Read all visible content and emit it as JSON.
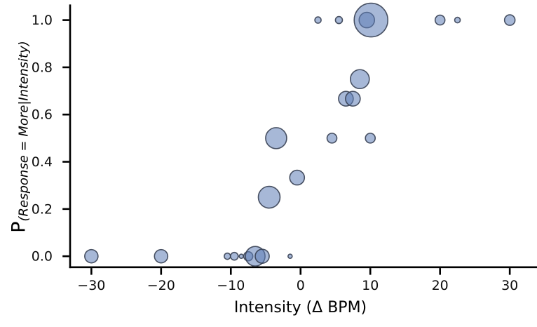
{
  "chart_data": {
    "type": "scatter",
    "subtype": "bubble",
    "title": "",
    "xlabel": "Intensity (Δ BPM)",
    "ylabel_main": "P",
    "ylabel_sub": "(Response = More|Intensity)",
    "xlim": [
      -33.05,
      33.0
    ],
    "ylim": [
      -0.0465,
      1.066
    ],
    "grid": false,
    "legend": false,
    "xticks": [
      -30,
      -20,
      -10,
      0,
      10,
      20,
      30
    ],
    "xtick_labels": [
      "−30",
      "−20",
      "−10",
      "0",
      "10",
      "20",
      "30"
    ],
    "yticks": [
      0.0,
      0.2,
      0.4,
      0.6,
      0.8,
      1.0
    ],
    "ytick_labels": [
      "0.0",
      "0.2",
      "0.4",
      "0.6",
      "0.8",
      "1.0"
    ],
    "colors": {
      "bubble_fill": "#5E7EB7",
      "bubble_fill_opacity": 0.55,
      "bubble_edge": "#374053",
      "bubble_edge_opacity": 0.9,
      "axis": "#000000",
      "background": "#FFFFFF"
    },
    "points": [
      {
        "x": -30,
        "y": 0.0,
        "r": 9.5
      },
      {
        "x": -20,
        "y": 0.0,
        "r": 9.5
      },
      {
        "x": -10.5,
        "y": 0.0,
        "r": 4.5
      },
      {
        "x": -9.5,
        "y": 0.0,
        "r": 5.5
      },
      {
        "x": -8.5,
        "y": 0.0,
        "r": 3
      },
      {
        "x": -7.5,
        "y": 0.0,
        "r": 6.5
      },
      {
        "x": -6.5,
        "y": 0.0,
        "r": 14
      },
      {
        "x": -5.5,
        "y": 0.0,
        "r": 10
      },
      {
        "x": -1.5,
        "y": 0.0,
        "r": 3
      },
      {
        "x": -4.5,
        "y": 0.25,
        "r": 15.5
      },
      {
        "x": -0.5,
        "y": 0.333,
        "r": 10.5
      },
      {
        "x": -3.5,
        "y": 0.5,
        "r": 15
      },
      {
        "x": 4.5,
        "y": 0.5,
        "r": 7
      },
      {
        "x": 10,
        "y": 0.5,
        "r": 7
      },
      {
        "x": 6.5,
        "y": 0.667,
        "r": 10.5
      },
      {
        "x": 7.5,
        "y": 0.667,
        "r": 10.5
      },
      {
        "x": 8.5,
        "y": 0.75,
        "r": 13.5
      },
      {
        "x": 2.5,
        "y": 1.0,
        "r": 4.5
      },
      {
        "x": 5.5,
        "y": 1.0,
        "r": 5
      },
      {
        "x": 9.5,
        "y": 1.0,
        "r": 11
      },
      {
        "x": 10.1,
        "y": 1.0,
        "r": 24
      },
      {
        "x": 20,
        "y": 1.0,
        "r": 7
      },
      {
        "x": 22.5,
        "y": 1.0,
        "r": 4
      },
      {
        "x": 30,
        "y": 1.0,
        "r": 7.5
      }
    ]
  }
}
